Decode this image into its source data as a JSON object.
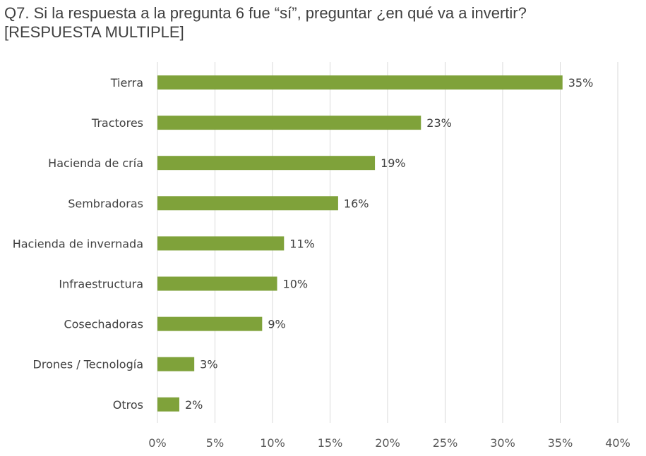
{
  "title_lines": [
    "Q7. Si la respuesta a la pregunta 6 fue “sí”, preguntar ¿en qué va a invertir?",
    "[RESPUESTA MULTIPLE]"
  ],
  "chart_data": {
    "type": "bar",
    "orientation": "horizontal",
    "title": "Q7. Si la respuesta a la pregunta 6 fue “sí”, preguntar ¿en qué va a invertir? [RESPUESTA MULTIPLE]",
    "categories": [
      "Tierra",
      "Tractores",
      "Hacienda de cría",
      "Sembradoras",
      "Hacienda de invernada",
      "Infraestructura",
      "Cosechadoras",
      "Drones / Tecnología",
      "Otros"
    ],
    "values": [
      35.2,
      22.9,
      18.9,
      15.7,
      11.0,
      10.4,
      9.1,
      3.2,
      1.9
    ],
    "data_labels": [
      "35%",
      "23%",
      "19%",
      "16%",
      "11%",
      "10%",
      "9%",
      "3%",
      "2%"
    ],
    "x_ticks": [
      "0%",
      "5%",
      "10%",
      "15%",
      "20%",
      "25%",
      "30%",
      "35%",
      "40%"
    ],
    "xlim": [
      0,
      40
    ],
    "grid": true,
    "legend": "none",
    "bar_color": "#7FA23A",
    "grid_color": "#D9D9D9"
  }
}
